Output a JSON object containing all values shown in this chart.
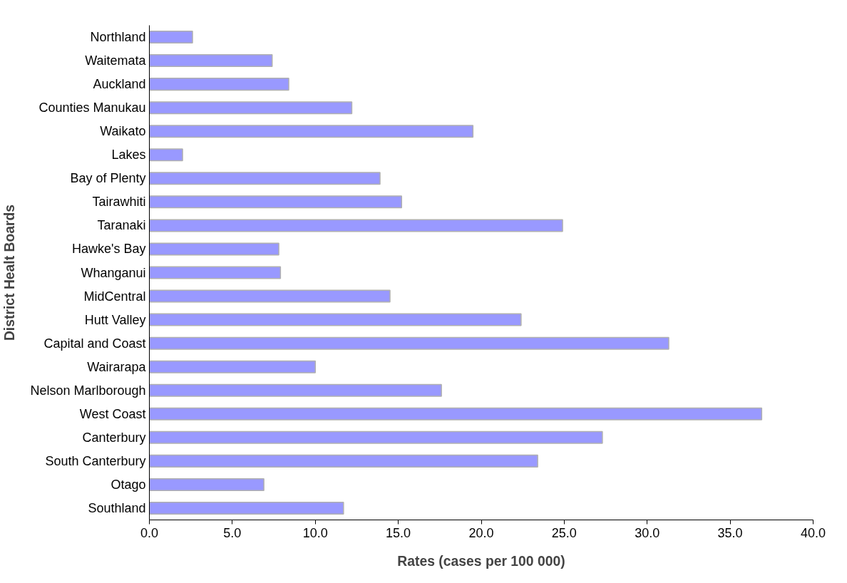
{
  "chart_data": {
    "type": "bar",
    "orientation": "horizontal",
    "xlabel": "Rates (cases per 100 000)",
    "ylabel": "District Healt Boards",
    "categories": [
      "Northland",
      "Waitemata",
      "Auckland",
      "Counties Manukau",
      "Waikato",
      "Lakes",
      "Bay of Plenty",
      "Tairawhiti",
      "Taranaki",
      "Hawke's Bay",
      "Whanganui",
      "MidCentral",
      "Hutt Valley",
      "Capital and Coast",
      "Wairarapa",
      "Nelson Marlborough",
      "West Coast",
      "Canterbury",
      "South Canterbury",
      "Otago",
      "Southland"
    ],
    "values": [
      2.6,
      7.4,
      8.4,
      12.2,
      19.5,
      2.0,
      13.9,
      15.2,
      24.9,
      7.8,
      7.9,
      14.5,
      22.4,
      31.3,
      10.0,
      17.6,
      36.9,
      27.3,
      23.4,
      6.9,
      11.7
    ],
    "color": "#9999ff",
    "xlim": [
      0,
      40
    ],
    "xticks": [
      {
        "value": 0,
        "label": "0.0"
      },
      {
        "value": 5,
        "label": "5.0"
      },
      {
        "value": 10,
        "label": "10.0"
      },
      {
        "value": 15,
        "label": "15.0"
      },
      {
        "value": 20,
        "label": "20.0"
      },
      {
        "value": 25,
        "label": "25.0"
      },
      {
        "value": 30,
        "label": "30.0"
      },
      {
        "value": 35,
        "label": "35.0"
      },
      {
        "value": 40,
        "label": "40.0"
      }
    ],
    "grid": false
  }
}
